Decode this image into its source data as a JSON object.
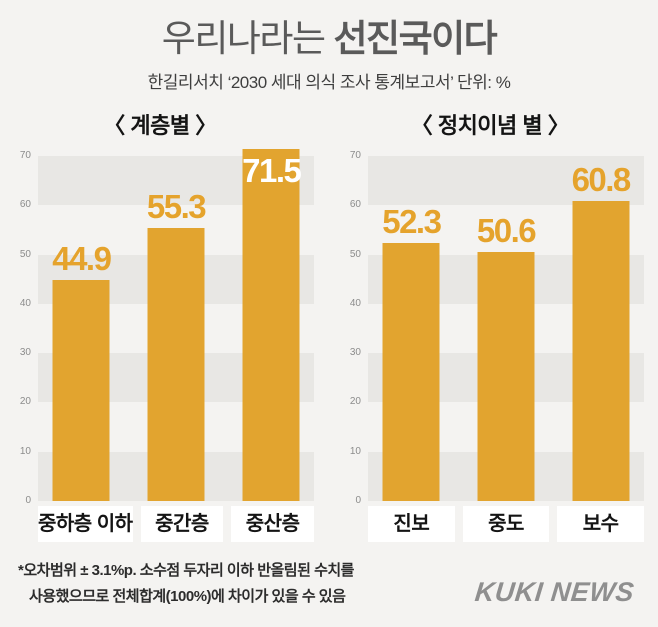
{
  "page": {
    "title_regular": "우리나라는",
    "title_bold": "선진국이다",
    "subtitle": "한길리서치 ‘2030 세대 의식 조사 통계보고서’ 단위: %",
    "footnote_line1": "*오차범위 ± 3.1%p. 소수점 두자리 이하 반올림된 수치를",
    "footnote_line2": "사용했으므로 전체합계(100%)에 차이가 있을 수 있음",
    "logo_text": "KUKI NEWS"
  },
  "colors": {
    "background": "#f4f3f1",
    "stripe": "#e8e7e4",
    "bar": "#e2a42f",
    "value_label": "#e5a32c",
    "value_label_on_bar": "#ffffff",
    "title": "#5a5a5a",
    "subtitle": "#3e3e3e",
    "heading": "#141414",
    "tick": "#8c8c8c",
    "category_box": "#ffffff",
    "note": "#2c2c2c",
    "logo": "#8f8f8f"
  },
  "chart_data": [
    {
      "type": "bar",
      "title": "〈 계층별 〉",
      "categories": [
        "중하층 이하",
        "중간층",
        "중산층"
      ],
      "values": [
        44.9,
        55.3,
        71.5
      ],
      "unit": "%",
      "ylim": [
        0,
        70
      ],
      "yticks": [
        0,
        10,
        20,
        30,
        40,
        50,
        60,
        70
      ],
      "grid": "alternating-bands",
      "legend": "none",
      "value_label_positions": [
        "above",
        "above",
        "inside-top"
      ]
    },
    {
      "type": "bar",
      "title": "〈 정치이념 별 〉",
      "categories": [
        "진보",
        "중도",
        "보수"
      ],
      "values": [
        52.3,
        50.6,
        60.8
      ],
      "unit": "%",
      "ylim": [
        0,
        70
      ],
      "yticks": [
        0,
        10,
        20,
        30,
        40,
        50,
        60,
        70
      ],
      "grid": "alternating-bands",
      "legend": "none",
      "value_label_positions": [
        "above",
        "above",
        "above"
      ]
    }
  ]
}
